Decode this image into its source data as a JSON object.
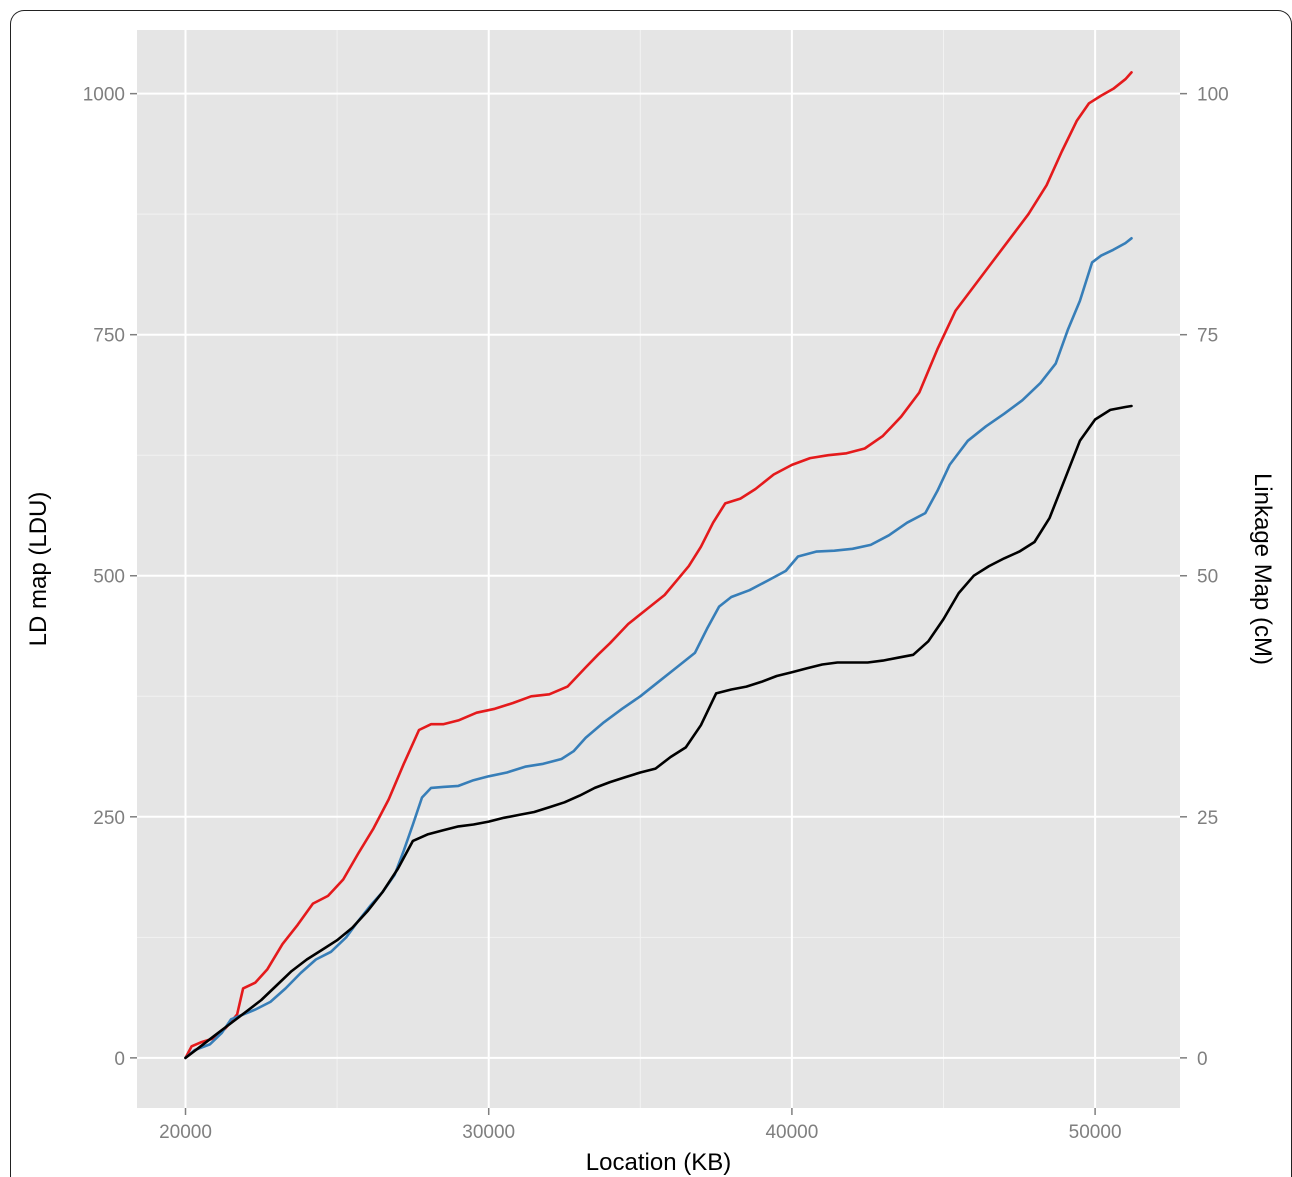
{
  "chart_data": {
    "type": "line",
    "xlabel": "Location (KB)",
    "ylabel": "LD map (LDU)",
    "y2label": "Linkage Map (cM)",
    "xlim": [
      18400,
      52800
    ],
    "ylim": [
      -52,
      1066
    ],
    "y2lim": [
      -5.2,
      106.6
    ],
    "x_ticks": [
      20000,
      30000,
      40000,
      50000
    ],
    "x_tick_labels": [
      "20000",
      "30000",
      "40000",
      "50000"
    ],
    "y_ticks": [
      0,
      250,
      500,
      750,
      1000
    ],
    "y_tick_labels": [
      "0",
      "250",
      "500",
      "750",
      "1000"
    ],
    "y2_ticks": [
      0,
      25,
      50,
      75,
      100
    ],
    "y2_tick_labels": [
      "0",
      "25",
      "50",
      "75",
      "100"
    ],
    "grid": true,
    "background_color": "#e5e5e5",
    "series": [
      {
        "color": "#e41a1c",
        "axis": "left",
        "x": [
          20000,
          20200,
          20500,
          20900,
          21300,
          21700,
          21900,
          22300,
          22700,
          23200,
          23700,
          24200,
          24700,
          25200,
          25700,
          26200,
          26700,
          27200,
          27700,
          28100,
          28500,
          29000,
          29600,
          30200,
          30800,
          31400,
          32000,
          32600,
          33200,
          33600,
          34000,
          34600,
          35200,
          35800,
          36200,
          36600,
          37000,
          37400,
          37800,
          38300,
          38800,
          39400,
          40000,
          40600,
          41200,
          41800,
          42400,
          43000,
          43600,
          44200,
          44800,
          45400,
          46000,
          46600,
          47200,
          47800,
          48400,
          48900,
          49400,
          49800,
          50200,
          50600,
          51000,
          51200
        ],
        "y": [
          0,
          12,
          16,
          20,
          30,
          45,
          72,
          78,
          92,
          118,
          138,
          160,
          168,
          185,
          212,
          238,
          268,
          305,
          340,
          346,
          346,
          350,
          358,
          362,
          368,
          375,
          377,
          385,
          405,
          418,
          430,
          450,
          465,
          480,
          495,
          510,
          530,
          555,
          575,
          580,
          590,
          605,
          615,
          622,
          625,
          627,
          632,
          645,
          665,
          690,
          735,
          775,
          800,
          825,
          850,
          875,
          905,
          940,
          972,
          990,
          998,
          1005,
          1015,
          1022
        ]
      },
      {
        "color": "#377eb8",
        "axis": "left",
        "x": [
          20000,
          20300,
          20800,
          21200,
          21500,
          21900,
          22300,
          22800,
          23300,
          23800,
          24300,
          24800,
          25300,
          25700,
          26100,
          26500,
          26900,
          27200,
          27500,
          27800,
          28100,
          28500,
          29000,
          29500,
          30000,
          30600,
          31200,
          31800,
          32400,
          32800,
          33200,
          33800,
          34400,
          35000,
          35600,
          36200,
          36800,
          37200,
          37600,
          38000,
          38600,
          39200,
          39800,
          40200,
          40800,
          41400,
          42000,
          42600,
          43200,
          43800,
          44400,
          44800,
          45200,
          45800,
          46400,
          47000,
          47600,
          48200,
          48700,
          49100,
          49500,
          49900,
          50200,
          50600,
          51000,
          51200
        ],
        "y": [
          0,
          8,
          14,
          26,
          40,
          45,
          50,
          58,
          72,
          88,
          102,
          110,
          125,
          142,
          158,
          172,
          190,
          215,
          242,
          270,
          280,
          281,
          282,
          288,
          292,
          296,
          302,
          305,
          310,
          318,
          332,
          348,
          362,
          375,
          390,
          405,
          420,
          445,
          468,
          478,
          485,
          495,
          505,
          520,
          525,
          526,
          528,
          532,
          542,
          555,
          565,
          588,
          615,
          640,
          655,
          668,
          682,
          700,
          720,
          755,
          785,
          825,
          832,
          838,
          845,
          850
        ]
      },
      {
        "color": "#000000",
        "axis": "left",
        "x": [
          20000,
          20500,
          21000,
          21500,
          22000,
          22500,
          23000,
          23500,
          24000,
          24500,
          25000,
          25500,
          26000,
          26500,
          27000,
          27500,
          28000,
          28500,
          29000,
          29500,
          30000,
          30500,
          31000,
          31500,
          32000,
          32500,
          33000,
          33500,
          34000,
          34500,
          35000,
          35500,
          36000,
          36500,
          37000,
          37500,
          38000,
          38500,
          39000,
          39500,
          40000,
          40500,
          41000,
          41500,
          42000,
          42500,
          43000,
          43500,
          44000,
          44500,
          45000,
          45500,
          46000,
          46500,
          47000,
          47500,
          48000,
          48500,
          49000,
          49500,
          50000,
          50500,
          51000,
          51200
        ],
        "y": [
          0,
          12,
          24,
          36,
          48,
          60,
          75,
          90,
          102,
          112,
          122,
          135,
          152,
          172,
          196,
          225,
          232,
          236,
          240,
          242,
          245,
          249,
          252,
          255,
          260,
          265,
          272,
          280,
          286,
          291,
          296,
          300,
          312,
          322,
          345,
          378,
          382,
          385,
          390,
          396,
          400,
          404,
          408,
          410,
          410,
          410,
          412,
          415,
          418,
          432,
          455,
          482,
          500,
          510,
          518,
          525,
          535,
          560,
          600,
          640,
          662,
          672,
          675,
          676
        ]
      }
    ]
  }
}
